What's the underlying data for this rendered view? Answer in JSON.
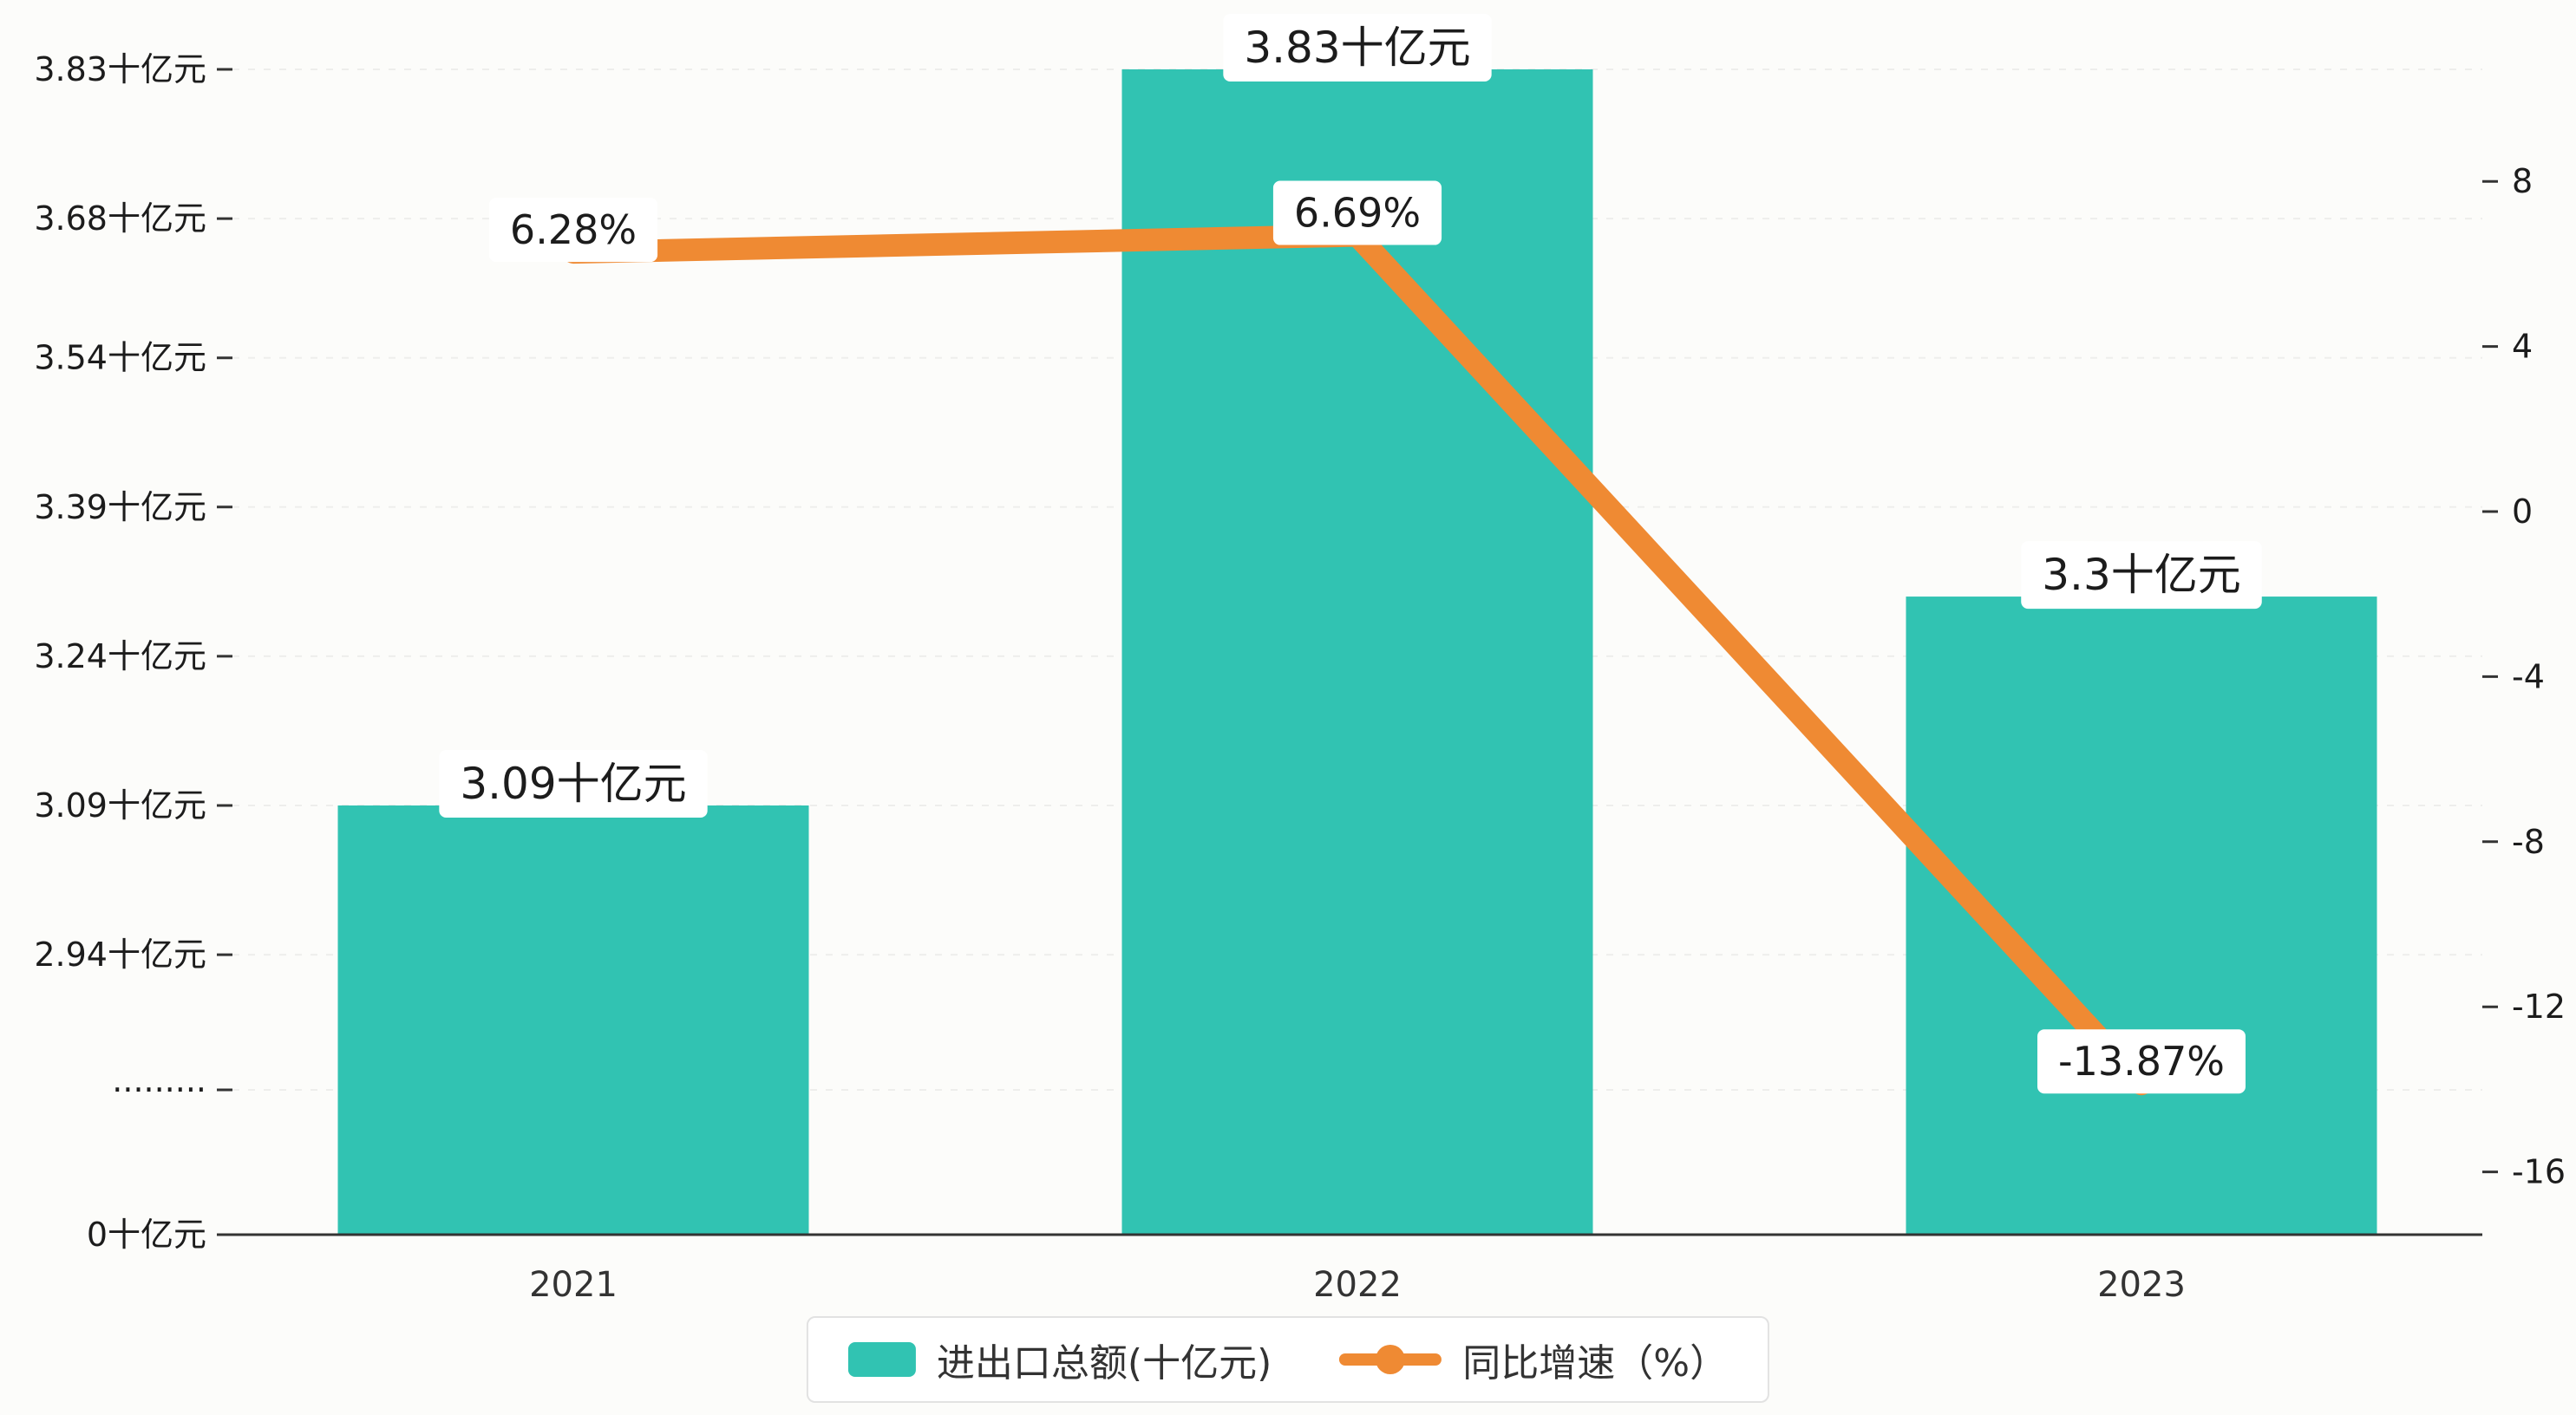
{
  "chart_data": {
    "type": "bar+line",
    "title": "",
    "categories": [
      "2021",
      "2022",
      "2023"
    ],
    "series": [
      {
        "name": "进出口总额(十亿元)",
        "type": "bar",
        "axis": "left",
        "values": [
          3.09,
          3.83,
          3.3
        ],
        "value_labels": [
          "3.09十亿元",
          "3.83十亿元",
          "3.3十亿元"
        ],
        "color": "#31C3B2"
      },
      {
        "name": "同比增速（%）",
        "type": "line",
        "axis": "right",
        "values": [
          6.28,
          6.69,
          -13.87
        ],
        "value_labels": [
          "6.28%",
          "6.69%",
          "-13.87%"
        ],
        "color": "#EF8A33"
      }
    ],
    "left_axis": {
      "unit": "十亿元",
      "has_break": true,
      "ticks": [
        {
          "value": 3.83,
          "label": "3.83十亿元"
        },
        {
          "value": 3.68,
          "label": "3.68十亿元"
        },
        {
          "value": 3.54,
          "label": "3.54十亿元"
        },
        {
          "value": 3.39,
          "label": "3.39十亿元"
        },
        {
          "value": 3.24,
          "label": "3.24十亿元"
        },
        {
          "value": 3.09,
          "label": "3.09十亿元"
        },
        {
          "value": 2.94,
          "label": "2.94十亿元"
        },
        {
          "value": "break",
          "label": "·········"
        },
        {
          "value": 0,
          "label": "0十亿元"
        }
      ]
    },
    "right_axis": {
      "range": [
        -16,
        8
      ],
      "ticks": [
        {
          "value": 8,
          "label": "8"
        },
        {
          "value": 4,
          "label": "4"
        },
        {
          "value": 0,
          "label": "0"
        },
        {
          "value": -4,
          "label": "-4"
        },
        {
          "value": -8,
          "label": "-8"
        },
        {
          "value": -12,
          "label": "-12"
        },
        {
          "value": -16,
          "label": "-16"
        }
      ]
    },
    "legend": {
      "position": "bottom-center",
      "items": [
        "进出口总额(十亿元)",
        "同比增速（%）"
      ]
    },
    "grid": "faint dashed horizontal lines at left-axis ticks",
    "colors": {
      "bar": "#31C3B2",
      "line": "#EF8A33",
      "background": "#FCFCFA",
      "axis_text": "#1C1C1C",
      "label_box": "#FFFFFF"
    }
  }
}
